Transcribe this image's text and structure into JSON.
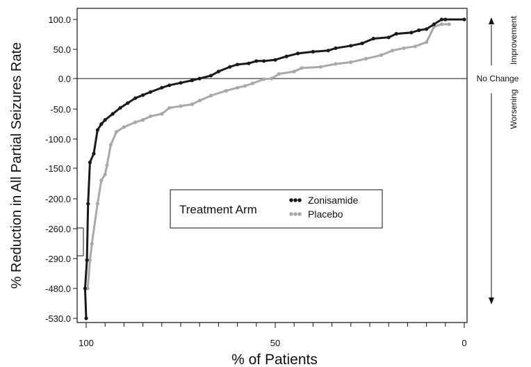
{
  "chart_data": {
    "type": "line",
    "title": "",
    "xlabel": "% of Patients",
    "ylabel": "% Reduction in All Partial Seizures Rate",
    "x_reversed": true,
    "xlim": [
      100,
      0
    ],
    "x_ticks": [
      100,
      50,
      0
    ],
    "y_scale": "categorical-broken",
    "y_ticks": [
      "100.0",
      "50.0",
      "0.0",
      "-50.0",
      "-100.0",
      "-150.0",
      "-200.0",
      "-260.0",
      "-290.0",
      "-480.0",
      "-530.0"
    ],
    "y_tick_values": [
      100,
      50,
      0,
      -50,
      -100,
      -150,
      -200,
      -260,
      -290,
      -480,
      -530
    ],
    "reference_line": {
      "y": 0,
      "label": "No Change"
    },
    "right_annotations": {
      "top": "Improvement",
      "bottom": "Worsening"
    },
    "legend": {
      "title": "Treatment Arm",
      "position": "center"
    },
    "series": [
      {
        "name": "Zonisamide",
        "color": "#1a1a1a",
        "points": [
          [
            100,
            -530
          ],
          [
            100.3,
            -480
          ],
          [
            99.8,
            -300
          ],
          [
            99.5,
            -210
          ],
          [
            99,
            -140
          ],
          [
            98,
            -125
          ],
          [
            97,
            -85
          ],
          [
            96,
            -75
          ],
          [
            95,
            -68
          ],
          [
            93,
            -58
          ],
          [
            91,
            -48
          ],
          [
            89,
            -40
          ],
          [
            87,
            -32
          ],
          [
            85,
            -27
          ],
          [
            83,
            -22
          ],
          [
            80,
            -15
          ],
          [
            78,
            -11
          ],
          [
            75,
            -7
          ],
          [
            72,
            -3
          ],
          [
            70,
            0
          ],
          [
            67,
            5
          ],
          [
            65,
            12
          ],
          [
            62,
            20
          ],
          [
            60,
            24
          ],
          [
            57,
            26
          ],
          [
            55,
            30
          ],
          [
            53,
            30
          ],
          [
            50,
            32
          ],
          [
            47,
            38
          ],
          [
            44,
            43
          ],
          [
            40,
            46
          ],
          [
            36,
            48
          ],
          [
            34,
            52
          ],
          [
            30,
            56
          ],
          [
            27,
            60
          ],
          [
            24,
            68
          ],
          [
            20,
            70
          ],
          [
            18,
            76
          ],
          [
            14,
            78
          ],
          [
            12,
            82
          ],
          [
            10,
            84
          ],
          [
            8,
            92
          ],
          [
            6,
            100
          ],
          [
            5,
            100
          ],
          [
            0,
            100
          ]
        ]
      },
      {
        "name": "Placebo",
        "color": "#a9a9a9",
        "points": [
          [
            99.6,
            -480
          ],
          [
            99,
            -300
          ],
          [
            98.5,
            -275
          ],
          [
            97,
            -210
          ],
          [
            96,
            -170
          ],
          [
            95,
            -160
          ],
          [
            94.5,
            -145
          ],
          [
            93.5,
            -110
          ],
          [
            92,
            -88
          ],
          [
            90,
            -80
          ],
          [
            87,
            -72
          ],
          [
            85,
            -68
          ],
          [
            83,
            -62
          ],
          [
            80,
            -58
          ],
          [
            78,
            -48
          ],
          [
            75,
            -45
          ],
          [
            72,
            -42
          ],
          [
            70,
            -36
          ],
          [
            67,
            -28
          ],
          [
            63,
            -20
          ],
          [
            60,
            -15
          ],
          [
            58,
            -12
          ],
          [
            56,
            -8
          ],
          [
            53,
            -1
          ],
          [
            51,
            0
          ],
          [
            49,
            8
          ],
          [
            45,
            12
          ],
          [
            43,
            18
          ],
          [
            38,
            20
          ],
          [
            34,
            25
          ],
          [
            30,
            28
          ],
          [
            26,
            34
          ],
          [
            22,
            40
          ],
          [
            19,
            48
          ],
          [
            16,
            52
          ],
          [
            13,
            55
          ],
          [
            10,
            62
          ],
          [
            8,
            88
          ],
          [
            6,
            92
          ],
          [
            4,
            92
          ]
        ]
      }
    ]
  }
}
